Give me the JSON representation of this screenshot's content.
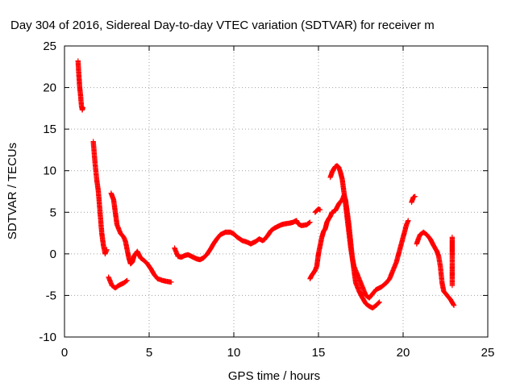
{
  "chart_data": {
    "type": "scatter",
    "title": "Day 304 of 2016, Sidereal Day-to-day VTEC variation (SDTVAR) for receiver m",
    "xlabel": "GPS time / hours",
    "ylabel": "SDTVAR / TECUs",
    "xlim": [
      0,
      25
    ],
    "ylim": [
      -10,
      25
    ],
    "xticks": [
      "0",
      "5",
      "10",
      "15",
      "20",
      "25"
    ],
    "yticks": [
      "-10",
      "-5",
      "0",
      "5",
      "10",
      "15",
      "20",
      "25"
    ],
    "grid": true,
    "marker": "+",
    "color": "#ff0000",
    "series": [
      {
        "name": "seg1",
        "points": [
          [
            0.8,
            23.2
          ],
          [
            0.85,
            21.5
          ],
          [
            0.9,
            20.0
          ],
          [
            0.95,
            19.0
          ],
          [
            1.0,
            17.8
          ],
          [
            1.05,
            17.3
          ],
          [
            1.08,
            17.6
          ]
        ]
      },
      {
        "name": "seg2",
        "points": [
          [
            1.7,
            13.5
          ],
          [
            1.8,
            11.0
          ],
          [
            1.9,
            9.0
          ],
          [
            2.0,
            7.5
          ],
          [
            2.1,
            5.0
          ],
          [
            2.2,
            2.5
          ],
          [
            2.3,
            1.0
          ],
          [
            2.4,
            0.0
          ],
          [
            2.5,
            0.5
          ]
        ]
      },
      {
        "name": "seg3",
        "points": [
          [
            2.6,
            -2.8
          ],
          [
            2.7,
            -3.3
          ],
          [
            2.8,
            -3.8
          ],
          [
            3.0,
            -4.1
          ],
          [
            3.2,
            -3.8
          ],
          [
            3.5,
            -3.5
          ],
          [
            3.7,
            -3.2
          ]
        ]
      },
      {
        "name": "seg4",
        "points": [
          [
            2.75,
            7.3
          ],
          [
            2.9,
            6.5
          ],
          [
            3.0,
            5.0
          ],
          [
            3.1,
            3.5
          ],
          [
            3.3,
            2.5
          ],
          [
            3.5,
            2.0
          ],
          [
            3.6,
            1.5
          ],
          [
            3.7,
            0.5
          ],
          [
            3.8,
            -0.5
          ],
          [
            3.9,
            -1.2
          ],
          [
            4.0,
            -1.0
          ],
          [
            4.1,
            -0.3
          ],
          [
            4.2,
            0.0
          ],
          [
            4.3,
            0.3
          ],
          [
            4.5,
            -0.5
          ],
          [
            4.7,
            -0.8
          ],
          [
            4.9,
            -1.2
          ],
          [
            5.1,
            -1.8
          ],
          [
            5.3,
            -2.5
          ],
          [
            5.5,
            -3.0
          ],
          [
            5.8,
            -3.2
          ],
          [
            6.0,
            -3.3
          ],
          [
            6.3,
            -3.4
          ]
        ]
      },
      {
        "name": "seg5",
        "points": [
          [
            6.5,
            0.7
          ],
          [
            6.6,
            0.2
          ],
          [
            6.7,
            -0.3
          ],
          [
            6.9,
            -0.4
          ],
          [
            7.1,
            -0.2
          ],
          [
            7.3,
            -0.1
          ],
          [
            7.5,
            -0.3
          ],
          [
            7.8,
            -0.6
          ],
          [
            8.0,
            -0.7
          ],
          [
            8.2,
            -0.5
          ],
          [
            8.4,
            -0.1
          ],
          [
            8.6,
            0.5
          ],
          [
            8.8,
            1.2
          ],
          [
            9.0,
            1.8
          ],
          [
            9.2,
            2.3
          ],
          [
            9.5,
            2.6
          ],
          [
            9.8,
            2.6
          ],
          [
            10.0,
            2.4
          ],
          [
            10.2,
            2.0
          ],
          [
            10.5,
            1.6
          ],
          [
            10.8,
            1.4
          ],
          [
            11.0,
            1.2
          ],
          [
            11.3,
            1.5
          ],
          [
            11.5,
            1.8
          ],
          [
            11.7,
            1.6
          ],
          [
            11.8,
            1.7
          ],
          [
            12.0,
            2.2
          ],
          [
            12.2,
            2.8
          ],
          [
            12.4,
            3.1
          ],
          [
            12.6,
            3.3
          ],
          [
            12.8,
            3.5
          ],
          [
            13.0,
            3.6
          ],
          [
            13.3,
            3.7
          ],
          [
            13.5,
            3.8
          ],
          [
            13.7,
            4.0
          ],
          [
            13.8,
            3.6
          ],
          [
            14.0,
            3.4
          ],
          [
            14.3,
            3.5
          ],
          [
            14.5,
            3.8
          ]
        ]
      },
      {
        "name": "seg6",
        "points": [
          [
            14.5,
            -3.0
          ],
          [
            14.6,
            -2.6
          ],
          [
            14.8,
            -2.0
          ],
          [
            14.9,
            -1.5
          ],
          [
            15.0,
            0.0
          ],
          [
            15.1,
            1.0
          ],
          [
            15.2,
            2.0
          ],
          [
            15.3,
            2.7
          ],
          [
            15.4,
            3.0
          ],
          [
            15.5,
            3.8
          ],
          [
            15.6,
            4.2
          ],
          [
            15.7,
            4.5
          ],
          [
            15.8,
            5.0
          ],
          [
            16.0,
            5.2
          ],
          [
            16.2,
            6.0
          ],
          [
            16.4,
            6.5
          ],
          [
            16.5,
            7.0
          ],
          [
            16.6,
            6.5
          ],
          [
            16.7,
            5.0
          ],
          [
            16.8,
            3.5
          ],
          [
            16.9,
            1.5
          ],
          [
            17.0,
            -0.5
          ],
          [
            17.1,
            -2.0
          ],
          [
            17.2,
            -3.5
          ],
          [
            17.4,
            -4.5
          ],
          [
            17.6,
            -5.3
          ],
          [
            17.8,
            -6.0
          ],
          [
            18.0,
            -6.3
          ],
          [
            18.2,
            -6.5
          ],
          [
            18.4,
            -6.2
          ],
          [
            18.6,
            -5.8
          ]
        ]
      },
      {
        "name": "seg7",
        "points": [
          [
            14.8,
            5.0
          ],
          [
            15.0,
            5.4
          ],
          [
            15.1,
            5.3
          ]
        ]
      },
      {
        "name": "seg8",
        "points": [
          [
            15.7,
            9.2
          ],
          [
            15.8,
            9.8
          ],
          [
            15.9,
            10.2
          ],
          [
            16.0,
            10.5
          ],
          [
            16.1,
            10.6
          ],
          [
            16.2,
            10.4
          ],
          [
            16.3,
            9.8
          ],
          [
            16.4,
            9.0
          ],
          [
            16.5,
            7.5
          ],
          [
            16.6,
            6.0
          ],
          [
            16.7,
            4.2
          ],
          [
            16.8,
            2.5
          ],
          [
            16.9,
            0.8
          ],
          [
            17.0,
            -0.5
          ],
          [
            17.1,
            -1.5
          ],
          [
            17.2,
            -2.0
          ],
          [
            17.4,
            -3.0
          ],
          [
            17.6,
            -4.0
          ],
          [
            17.8,
            -5.0
          ],
          [
            18.0,
            -5.3
          ],
          [
            18.2,
            -4.8
          ],
          [
            18.4,
            -4.3
          ],
          [
            18.7,
            -4.0
          ],
          [
            19.0,
            -3.5
          ],
          [
            19.2,
            -3.0
          ],
          [
            19.4,
            -2.0
          ],
          [
            19.6,
            -1.0
          ],
          [
            19.8,
            0.5
          ],
          [
            20.0,
            2.0
          ],
          [
            20.2,
            3.5
          ],
          [
            20.3,
            4.0
          ]
        ]
      },
      {
        "name": "seg9",
        "points": [
          [
            20.5,
            6.2
          ],
          [
            20.6,
            6.8
          ],
          [
            20.7,
            6.9
          ]
        ]
      },
      {
        "name": "seg10",
        "points": [
          [
            20.8,
            1.2
          ],
          [
            20.9,
            1.8
          ],
          [
            21.0,
            2.3
          ],
          [
            21.2,
            2.6
          ],
          [
            21.4,
            2.3
          ],
          [
            21.6,
            1.8
          ],
          [
            21.8,
            1.0
          ],
          [
            22.0,
            0.3
          ],
          [
            22.1,
            -0.3
          ],
          [
            22.2,
            -1.5
          ],
          [
            22.3,
            -3.5
          ],
          [
            22.4,
            -4.5
          ],
          [
            22.6,
            -5.0
          ],
          [
            22.8,
            -5.5
          ],
          [
            23.0,
            -6.2
          ]
        ]
      },
      {
        "name": "seg11",
        "points": [
          [
            22.9,
            2.0
          ],
          [
            22.9,
            1.5
          ],
          [
            22.9,
            0.8
          ],
          [
            22.9,
            -0.3
          ],
          [
            22.9,
            -1.5
          ],
          [
            22.9,
            -3.0
          ],
          [
            22.9,
            -3.8
          ]
        ]
      }
    ]
  }
}
